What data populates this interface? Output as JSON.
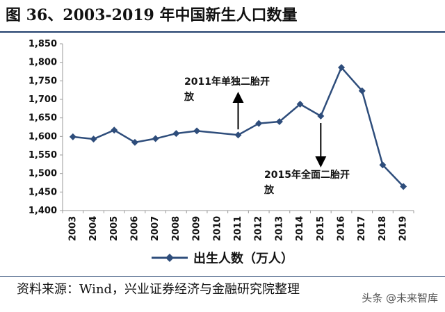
{
  "title": "图 36、2003-2019 年中国新生人口数量",
  "source": "资料来源：Wind，兴业证券经济与金融研究院整理",
  "watermark": "头条 @未来智库",
  "colors": {
    "series": "#2e4d7b",
    "rule": "#1f3e6b",
    "axis": "#999999"
  },
  "chart_data": {
    "type": "line",
    "x": [
      "2003",
      "2004",
      "2005",
      "2006",
      "2007",
      "2008",
      "2009",
      "2010",
      "2011",
      "2012",
      "2013",
      "2014",
      "2015",
      "2016",
      "2017",
      "2018",
      "2019"
    ],
    "series": [
      {
        "name": "出生人数（万人）",
        "values": [
          1599,
          1593,
          1617,
          1584,
          1594,
          1608,
          1615,
          null,
          1604,
          1635,
          1640,
          1687,
          1655,
          1786,
          1723,
          1523,
          1465
        ],
        "marker": "diamond"
      }
    ],
    "ylim": [
      1400,
      1850
    ],
    "yticks": [
      "1,400",
      "1,450",
      "1,500",
      "1,550",
      "1,600",
      "1,650",
      "1,700",
      "1,750",
      "1,800",
      "1,850"
    ],
    "grid": false,
    "legend": "bottom",
    "annotations": [
      {
        "lines": [
          "2011年单独二胎开",
          "放"
        ],
        "x": "2011",
        "arrow": "up"
      },
      {
        "lines": [
          "2015年全面二胎开",
          "放"
        ],
        "x": "2015",
        "arrow": "down"
      }
    ]
  }
}
